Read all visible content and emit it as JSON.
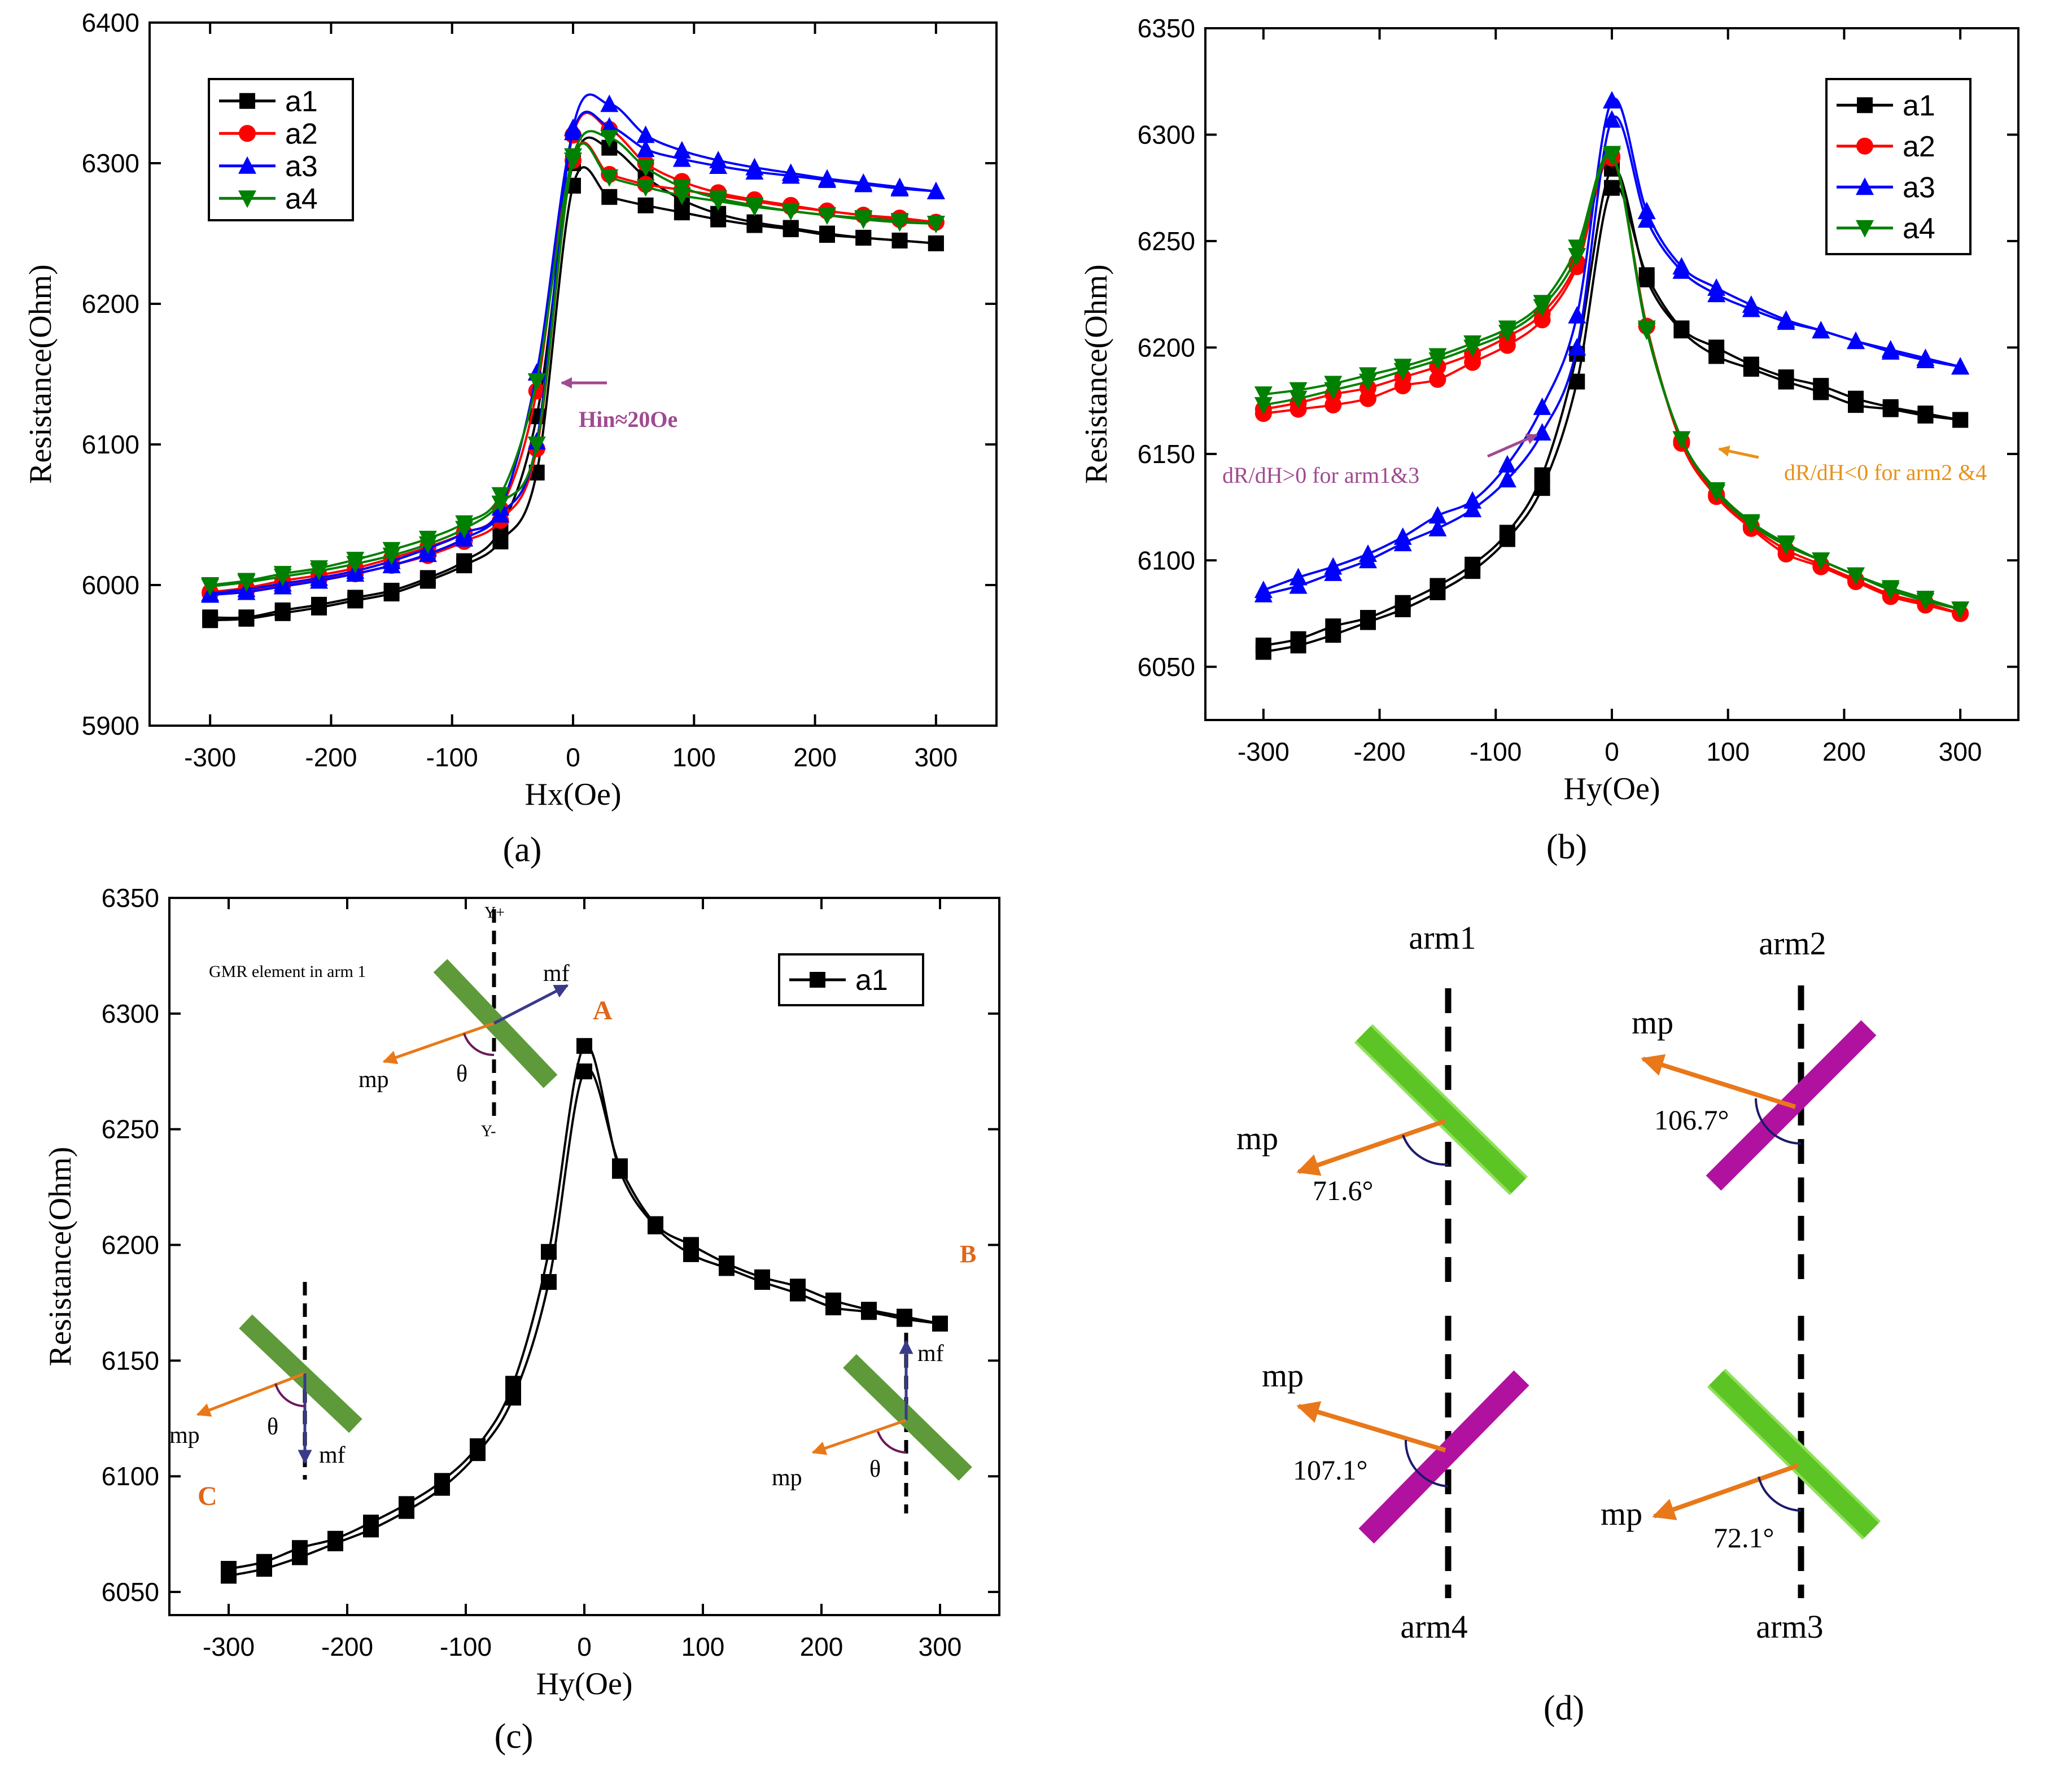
{
  "chart_data": [
    {
      "type": "line",
      "panel_label": "(a)",
      "xlabel": "Hx(Oe)",
      "ylabel": "Resistance(Ohm)",
      "xlim": [
        -350,
        350
      ],
      "ylim": [
        5900,
        6400
      ],
      "xticks": [
        "-300",
        "-200",
        "-100",
        "0",
        "100",
        "200",
        "300"
      ],
      "yticks": [
        "5900",
        "6000",
        "6100",
        "6200",
        "6300",
        "6400"
      ],
      "legend": [
        "a1",
        "a2",
        "a3",
        "a4"
      ],
      "annotation": "Hin≈20Oe",
      "x": [
        -300,
        -270,
        -240,
        -210,
        -180,
        -150,
        -120,
        -90,
        -60,
        -30,
        0,
        30,
        60,
        90,
        120,
        150,
        180,
        210,
        240,
        270,
        300
      ],
      "series": [
        {
          "name": "a1",
          "color": "#000000",
          "marker": "square",
          "up": [
            5975,
            5976,
            5980,
            5984,
            5989,
            5994,
            6003,
            6014,
            6031,
            6080,
            6284,
            6276,
            6270,
            6265,
            6260,
            6256,
            6253,
            6249,
            6247,
            6245,
            6243
          ],
          "down": [
            5977,
            5977,
            5982,
            5986,
            5991,
            5996,
            6005,
            6017,
            6040,
            6120,
            6300,
            6311,
            6290,
            6274,
            6264,
            6258,
            6254,
            6250,
            6247,
            6245,
            6243
          ]
        },
        {
          "name": "a2",
          "color": "#ff0000",
          "marker": "circle",
          "up": [
            5994,
            5996,
            6000,
            6004,
            6008,
            6014,
            6021,
            6031,
            6046,
            6097,
            6302,
            6292,
            6285,
            6281,
            6277,
            6273,
            6269,
            6266,
            6263,
            6261,
            6258
          ],
          "down": [
            5995,
            5998,
            6003,
            6007,
            6012,
            6019,
            6027,
            6037,
            6054,
            6138,
            6320,
            6324,
            6300,
            6287,
            6279,
            6274,
            6270,
            6266,
            6263,
            6260,
            6258
          ]
        },
        {
          "name": "a3",
          "color": "#0000ff",
          "marker": "triangle-up",
          "up": [
            5993,
            5995,
            5999,
            6003,
            6008,
            6014,
            6022,
            6033,
            6050,
            6102,
            6325,
            6342,
            6320,
            6309,
            6302,
            6297,
            6293,
            6289,
            6286,
            6283,
            6280
          ],
          "down": [
            5994,
            5997,
            6001,
            6005,
            6010,
            6017,
            6026,
            6037,
            6055,
            6151,
            6322,
            6326,
            6310,
            6303,
            6298,
            6294,
            6291,
            6288,
            6285,
            6282,
            6280
          ]
        },
        {
          "name": "a4",
          "color": "#008000",
          "marker": "triangle-down",
          "up": [
            5999,
            6002,
            6006,
            6010,
            6015,
            6021,
            6029,
            6040,
            6058,
            6100,
            6302,
            6290,
            6283,
            6277,
            6273,
            6269,
            6266,
            6263,
            6261,
            6259,
            6257
          ],
          "down": [
            6000,
            6003,
            6008,
            6012,
            6018,
            6025,
            6033,
            6044,
            6064,
            6145,
            6305,
            6318,
            6297,
            6283,
            6275,
            6270,
            6266,
            6263,
            6260,
            6258,
            6257
          ]
        }
      ]
    },
    {
      "type": "line",
      "panel_label": "(b)",
      "xlabel": "Hy(Oe)",
      "ylabel": "Resistance(Ohm)",
      "xlim": [
        -350,
        350
      ],
      "ylim": [
        6025,
        6350
      ],
      "xticks": [
        "-300",
        "-200",
        "-100",
        "0",
        "100",
        "200",
        "300"
      ],
      "yticks": [
        "6050",
        "6100",
        "6150",
        "6200",
        "6250",
        "6300",
        "6350"
      ],
      "legend": [
        "a1",
        "a2",
        "a3",
        "a4"
      ],
      "annotations": [
        "dR/dH>0 for arm1&3",
        "dR/dH<0 for arm2 &4"
      ],
      "x": [
        -300,
        -270,
        -240,
        -210,
        -180,
        -150,
        -120,
        -90,
        -60,
        -30,
        0,
        30,
        60,
        90,
        120,
        150,
        180,
        210,
        240,
        270,
        300
      ],
      "series": [
        {
          "name": "a1",
          "color": "#000000",
          "marker": "square",
          "up": [
            6057,
            6060,
            6065,
            6071,
            6077,
            6085,
            6095,
            6110,
            6134,
            6184,
            6275,
            6234,
            6209,
            6200,
            6192,
            6186,
            6182,
            6176,
            6172,
            6169,
            6166
          ],
          "down": [
            6060,
            6063,
            6069,
            6073,
            6080,
            6088,
            6098,
            6113,
            6140,
            6197,
            6284,
            6232,
            6208,
            6196,
            6190,
            6184,
            6179,
            6173,
            6171,
            6168,
            6166
          ]
        },
        {
          "name": "a2",
          "color": "#ff0000",
          "marker": "circle",
          "up": [
            6169,
            6171,
            6173,
            6176,
            6182,
            6185,
            6193,
            6201,
            6213,
            6238,
            6289,
            6210,
            6155,
            6130,
            6115,
            6103,
            6097,
            6090,
            6083,
            6079,
            6075
          ],
          "down": [
            6171,
            6174,
            6178,
            6181,
            6186,
            6191,
            6197,
            6205,
            6216,
            6240,
            6290,
            6210,
            6156,
            6131,
            6116,
            6105,
            6098,
            6091,
            6084,
            6080,
            6075
          ]
        },
        {
          "name": "a3",
          "color": "#0000ff",
          "marker": "triangle-up",
          "up": [
            6084,
            6088,
            6094,
            6100,
            6108,
            6115,
            6124,
            6138,
            6160,
            6200,
            6307,
            6260,
            6236,
            6225,
            6218,
            6212,
            6208,
            6203,
            6199,
            6195,
            6191
          ],
          "down": [
            6086,
            6092,
            6097,
            6103,
            6111,
            6121,
            6128,
            6145,
            6172,
            6215,
            6316,
            6264,
            6238,
            6228,
            6220,
            6213,
            6208,
            6203,
            6198,
            6194,
            6191
          ]
        },
        {
          "name": "a4",
          "color": "#008000",
          "marker": "triangle-down",
          "up": [
            6173,
            6176,
            6180,
            6184,
            6189,
            6194,
            6200,
            6207,
            6219,
            6243,
            6290,
            6208,
            6157,
            6132,
            6117,
            6107,
            6100,
            6093,
            6086,
            6081,
            6077
          ],
          "down": [
            6178,
            6180,
            6183,
            6187,
            6191,
            6196,
            6202,
            6209,
            6221,
            6247,
            6291,
            6209,
            6157,
            6133,
            6118,
            6108,
            6100,
            6093,
            6087,
            6082,
            6077
          ]
        }
      ]
    },
    {
      "type": "line",
      "panel_label": "(c)",
      "xlabel": "Hy(Oe)",
      "ylabel": "Resistance(Ohm)",
      "xlim": [
        -350,
        350
      ],
      "ylim": [
        6040,
        6350
      ],
      "xticks": [
        "-300",
        "-200",
        "-100",
        "0",
        "100",
        "200",
        "300"
      ],
      "yticks": [
        "6050",
        "6100",
        "6150",
        "6200",
        "6250",
        "6300",
        "6350"
      ],
      "legend": [
        "a1"
      ],
      "x": [
        -300,
        -270,
        -240,
        -210,
        -180,
        -150,
        -120,
        -90,
        -60,
        -30,
        0,
        30,
        60,
        90,
        120,
        150,
        180,
        210,
        240,
        270,
        300
      ],
      "series": [
        {
          "name": "a1",
          "color": "#000000",
          "marker": "square",
          "up": [
            6057,
            6060,
            6065,
            6071,
            6077,
            6085,
            6095,
            6110,
            6134,
            6184,
            6275,
            6234,
            6209,
            6200,
            6192,
            6186,
            6182,
            6176,
            6172,
            6169,
            6166
          ],
          "down": [
            6060,
            6063,
            6069,
            6073,
            6080,
            6088,
            6098,
            6113,
            6140,
            6197,
            6286,
            6232,
            6208,
            6196,
            6190,
            6184,
            6179,
            6173,
            6171,
            6168,
            6166
          ]
        }
      ],
      "point_labels": {
        "A": "A",
        "B": "B",
        "C": "C"
      },
      "inset_text": {
        "gmr": "GMR element in arm 1",
        "yplus": "Y+",
        "yminus": "Y-",
        "mf": "mf",
        "mp": "mp",
        "theta": "θ"
      }
    }
  ],
  "diagram_d": {
    "panel_label": "(d)",
    "arms": [
      {
        "label": "arm1",
        "angle": "71.6°",
        "vector": "mp"
      },
      {
        "label": "arm2",
        "angle": "106.7°",
        "vector": "mp"
      },
      {
        "label": "arm4",
        "angle": "107.1°",
        "vector": "mp"
      },
      {
        "label": "arm3",
        "angle": "72.1°",
        "vector": "mp"
      }
    ],
    "colors": {
      "green": "#66cc22",
      "magenta": "#b0129f",
      "orange": "#e8781a",
      "navy": "#1a1a6a"
    }
  },
  "colors": {
    "annotation_purple": "#a04a90",
    "annotation_orange": "#e8921a",
    "label_orange": "#e0661a"
  }
}
